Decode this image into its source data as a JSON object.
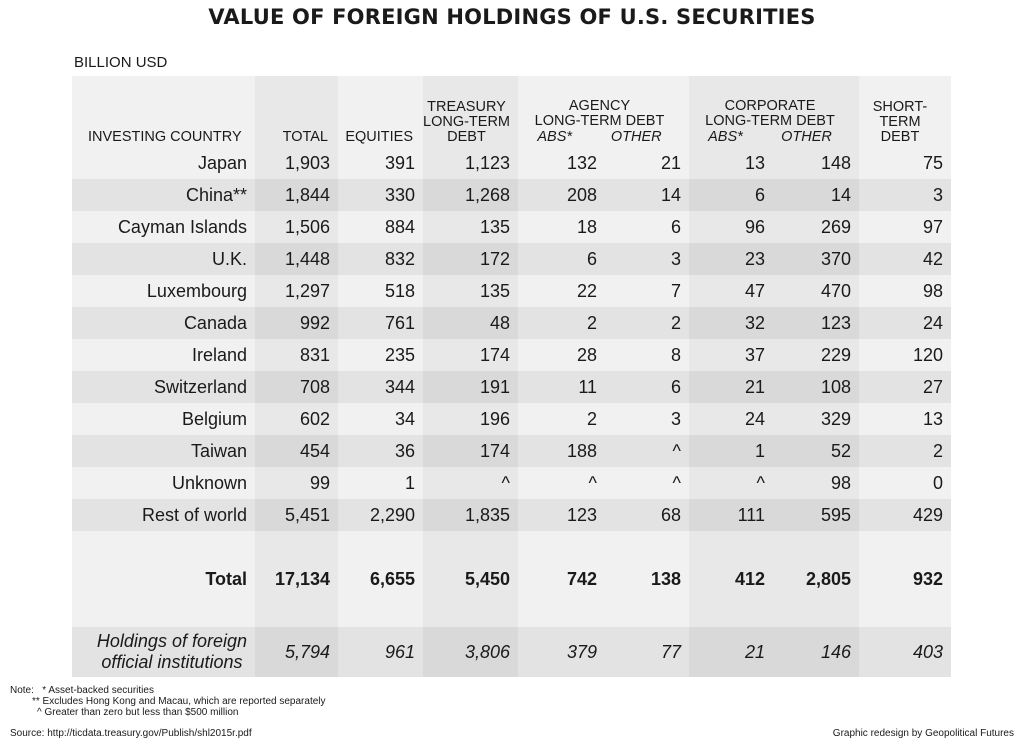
{
  "title": "VALUE OF FOREIGN HOLDINGS OF U.S. SECURITIES",
  "unit": "BILLION USD",
  "headers": {
    "country": "INVESTING COUNTRY",
    "total": "TOTAL",
    "equities": "EQUITIES",
    "treasury": [
      "TREASURY",
      "LONG-TERM",
      "DEBT"
    ],
    "agency": [
      "AGENCY",
      "LONG-TERM DEBT"
    ],
    "corporate": [
      "CORPORATE",
      "LONG-TERM DEBT"
    ],
    "abs": "ABS*",
    "other": "OTHER",
    "shortterm": [
      "SHORT-",
      "TERM",
      "DEBT"
    ]
  },
  "rows": [
    {
      "country": "Japan",
      "total": "1,903",
      "equities": "391",
      "treasury": "1,123",
      "agency_abs": "132",
      "agency_other": "21",
      "corp_abs": "13",
      "corp_other": "148",
      "short": "75"
    },
    {
      "country": "China**",
      "total": "1,844",
      "equities": "330",
      "treasury": "1,268",
      "agency_abs": "208",
      "agency_other": "14",
      "corp_abs": "6",
      "corp_other": "14",
      "short": "3"
    },
    {
      "country": "Cayman Islands",
      "total": "1,506",
      "equities": "884",
      "treasury": "135",
      "agency_abs": "18",
      "agency_other": "6",
      "corp_abs": "96",
      "corp_other": "269",
      "short": "97"
    },
    {
      "country": "U.K.",
      "total": "1,448",
      "equities": "832",
      "treasury": "172",
      "agency_abs": "6",
      "agency_other": "3",
      "corp_abs": "23",
      "corp_other": "370",
      "short": "42"
    },
    {
      "country": "Luxembourg",
      "total": "1,297",
      "equities": "518",
      "treasury": "135",
      "agency_abs": "22",
      "agency_other": "7",
      "corp_abs": "47",
      "corp_other": "470",
      "short": "98"
    },
    {
      "country": "Canada",
      "total": "992",
      "equities": "761",
      "treasury": "48",
      "agency_abs": "2",
      "agency_other": "2",
      "corp_abs": "32",
      "corp_other": "123",
      "short": "24"
    },
    {
      "country": "Ireland",
      "total": "831",
      "equities": "235",
      "treasury": "174",
      "agency_abs": "28",
      "agency_other": "8",
      "corp_abs": "37",
      "corp_other": "229",
      "short": "120"
    },
    {
      "country": "Switzerland",
      "total": "708",
      "equities": "344",
      "treasury": "191",
      "agency_abs": "11",
      "agency_other": "6",
      "corp_abs": "21",
      "corp_other": "108",
      "short": "27"
    },
    {
      "country": "Belgium",
      "total": "602",
      "equities": "34",
      "treasury": "196",
      "agency_abs": "2",
      "agency_other": "3",
      "corp_abs": "24",
      "corp_other": "329",
      "short": "13"
    },
    {
      "country": "Taiwan",
      "total": "454",
      "equities": "36",
      "treasury": "174",
      "agency_abs": "188",
      "agency_other": "^",
      "corp_abs": "1",
      "corp_other": "52",
      "short": "2"
    },
    {
      "country": "Unknown",
      "total": "99",
      "equities": "1",
      "treasury": "^",
      "agency_abs": "^",
      "agency_other": "^",
      "corp_abs": "^",
      "corp_other": "98",
      "short": "0"
    },
    {
      "country": "Rest of world",
      "total": "5,451",
      "equities": "2,290",
      "treasury": "1,835",
      "agency_abs": "123",
      "agency_other": "68",
      "corp_abs": "111",
      "corp_other": "595",
      "short": "429"
    }
  ],
  "total_row": {
    "country": "Total",
    "total": "17,134",
    "equities": "6,655",
    "treasury": "5,450",
    "agency_abs": "742",
    "agency_other": "138",
    "corp_abs": "412",
    "corp_other": "2,805",
    "short": "932"
  },
  "official_row": {
    "label": [
      "Holdings of foreign",
      "official institutions"
    ],
    "total": "5,794",
    "equities": "961",
    "treasury": "3,806",
    "agency_abs": "379",
    "agency_other": "77",
    "corp_abs": "21",
    "corp_other": "146",
    "short": "403"
  },
  "notes": {
    "label": "Note:",
    "n1": "* Asset-backed securities",
    "n2": "** Excludes Hong Kong and Macau, which are reported separately",
    "n3": "^ Greater than zero but less than $500 million"
  },
  "source": "Source:  http://ticdata.treasury.gov/Publish/shl2015r.pdf",
  "credit": "Graphic redesign by Geopolitical Futures"
}
